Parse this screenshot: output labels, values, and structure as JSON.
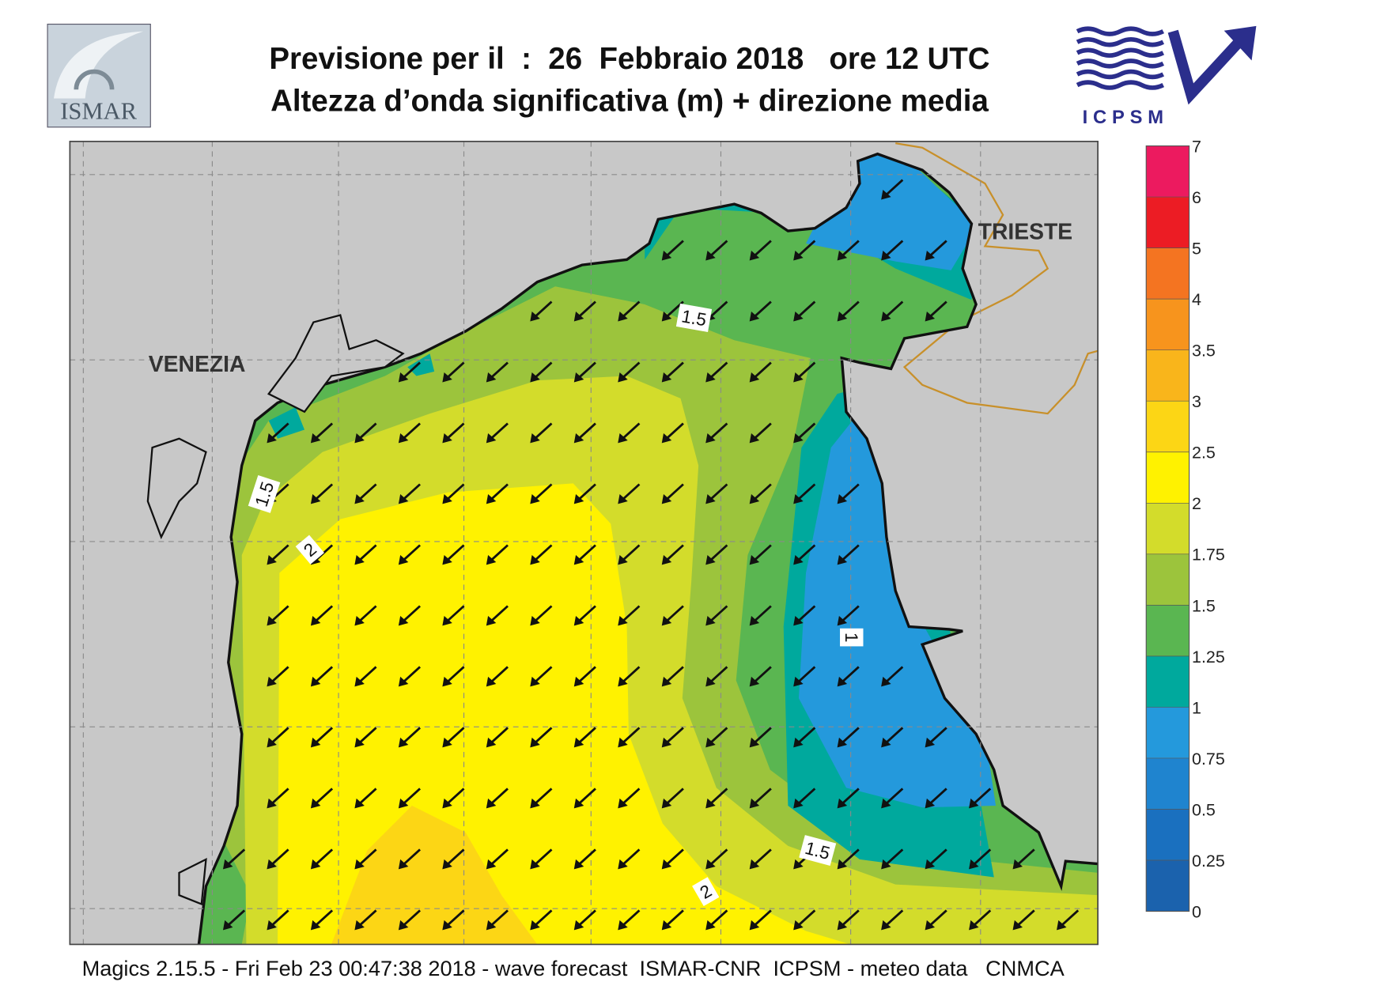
{
  "header": {
    "title": "Previsione per il  :  26  Febbraio 2018   ore 12 UTC",
    "subtitle": "Altezza d’onda significativa (m) + direzione media"
  },
  "logos": {
    "left": "ISMAR",
    "right": "ICPSM"
  },
  "map": {
    "place_labels": [
      "VENEZIA",
      "TRIESTE"
    ],
    "contour_labels": [
      "1.5",
      "1.5",
      "2",
      "1",
      "1.5",
      "2"
    ]
  },
  "colorbar": {
    "levels": [
      0,
      0.25,
      0.5,
      0.75,
      1,
      1.25,
      1.5,
      1.75,
      2,
      2.5,
      3,
      3.5,
      4,
      5,
      6,
      7
    ],
    "colors": [
      "#1b62ad",
      "#1a70bf",
      "#1f84cf",
      "#2499dc",
      "#00a99d",
      "#5ab651",
      "#9cc43c",
      "#d3dc2b",
      "#fff200",
      "#fcd615",
      "#f9b51b",
      "#f7941d",
      "#f47421",
      "#ec1c24",
      "#ec1a5f"
    ]
  },
  "footer": "Magics 2.15.5 - Fri Feb 23 00:47:38 2018 - wave forecast  ISMAR-CNR  ICPSM - meteo data   CNMCA"
}
